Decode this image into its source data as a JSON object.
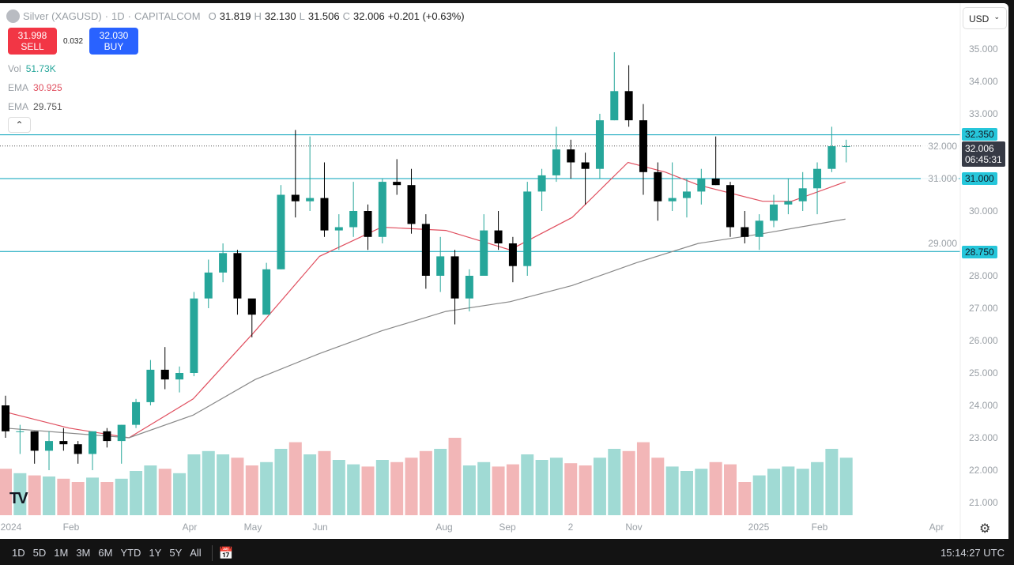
{
  "header": {
    "symbol": "Silver (XAGUSD)",
    "interval": "1D",
    "exchange": "CAPITALCOM",
    "o_label": "O",
    "open": "31.819",
    "h_label": "H",
    "high": "32.130",
    "l_label": "L",
    "low": "31.506",
    "c_label": "C",
    "close": "32.006",
    "change": "+0.201 (+0.63%)"
  },
  "trade": {
    "sell_price": "31.998",
    "sell_label": "SELL",
    "spread": "0.032",
    "buy_price": "32.030",
    "buy_label": "BUY"
  },
  "indicators": [
    {
      "label": "Vol",
      "value": "51.73K",
      "color": "#26a69a"
    },
    {
      "label": "EMA",
      "value": "30.925",
      "color": "#e04f5f"
    },
    {
      "label": "EMA",
      "value": "29.751",
      "color": "#555555"
    }
  ],
  "currency": "USD",
  "price_labels": {
    "res": "32.350",
    "last": "32.006",
    "countdown": "06:45:31",
    "mid": "31.000",
    "sup": "28.750"
  },
  "toolbar": {
    "ranges": [
      "1D",
      "5D",
      "1M",
      "3M",
      "6M",
      "YTD",
      "1Y",
      "5Y",
      "All"
    ],
    "clock": "15:14:27 UTC"
  },
  "colors": {
    "up": "#26a69a",
    "down": "#000000",
    "vol_up": "#8fd3cc",
    "vol_down": "#f0a9aa",
    "ema_fast": "#e04f5f",
    "ema_slow": "#888888",
    "hline": "#00a0b8"
  },
  "chart_data": {
    "type": "candlestick",
    "note_period": "weekly aggregation of daily candles",
    "ylim": [
      20.5,
      35.5
    ],
    "yticks": [
      "35.000",
      "34.000",
      "33.000",
      "32.000",
      "31.000",
      "30.000",
      "29.000",
      "28.000",
      "27.000",
      "26.000",
      "25.000",
      "24.000",
      "23.000",
      "22.000",
      "21.000"
    ],
    "xticks": [
      "2024",
      "Feb",
      "Apr",
      "May",
      "Jun",
      "Aug",
      "Sep",
      "2",
      "Nov",
      "2025",
      "Feb",
      "Apr"
    ],
    "hlines": [
      32.35,
      31.0,
      28.75
    ],
    "last_price": 32.006,
    "candles": [
      [
        "2024-01-01",
        24.0,
        24.3,
        23.0,
        23.2,
        42
      ],
      [
        "2024-01-08",
        23.2,
        23.4,
        22.5,
        23.2,
        38
      ],
      [
        "2024-01-15",
        23.2,
        23.2,
        22.2,
        22.6,
        36
      ],
      [
        "2024-01-22",
        22.6,
        23.2,
        22.0,
        22.9,
        35
      ],
      [
        "2024-01-29",
        22.9,
        23.3,
        22.6,
        22.8,
        33
      ],
      [
        "2024-02-05",
        22.8,
        22.9,
        22.2,
        22.5,
        30
      ],
      [
        "2024-02-12",
        22.5,
        23.2,
        22.0,
        23.2,
        34
      ],
      [
        "2024-02-19",
        23.2,
        23.3,
        22.7,
        22.9,
        30
      ],
      [
        "2024-02-26",
        22.9,
        23.4,
        22.2,
        23.4,
        33
      ],
      [
        "2024-03-04",
        23.4,
        24.2,
        23.3,
        24.1,
        40
      ],
      [
        "2024-03-11",
        24.1,
        25.4,
        24.0,
        25.1,
        45
      ],
      [
        "2024-03-18",
        25.1,
        25.8,
        24.5,
        24.8,
        42
      ],
      [
        "2024-03-25",
        24.8,
        25.2,
        24.4,
        25.0,
        38
      ],
      [
        "2024-04-01",
        25.0,
        27.5,
        24.9,
        27.3,
        55
      ],
      [
        "2024-04-08",
        27.3,
        28.5,
        27.0,
        28.1,
        58
      ],
      [
        "2024-04-15",
        28.1,
        29.0,
        27.8,
        28.7,
        55
      ],
      [
        "2024-04-22",
        28.7,
        28.8,
        26.8,
        27.3,
        52
      ],
      [
        "2024-04-29",
        27.3,
        27.2,
        26.1,
        26.8,
        45
      ],
      [
        "2024-05-06",
        26.8,
        28.4,
        26.8,
        28.2,
        48
      ],
      [
        "2024-05-13",
        28.2,
        30.8,
        28.2,
        30.5,
        60
      ],
      [
        "2024-05-20",
        30.5,
        32.5,
        29.8,
        30.3,
        66
      ],
      [
        "2024-05-27",
        30.3,
        32.3,
        30.0,
        30.4,
        55
      ],
      [
        "2024-06-03",
        30.4,
        31.5,
        29.2,
        29.4,
        58
      ],
      [
        "2024-06-10",
        29.4,
        29.9,
        28.8,
        29.5,
        50
      ],
      [
        "2024-06-17",
        29.5,
        30.9,
        29.2,
        30.0,
        46
      ],
      [
        "2024-06-24",
        30.0,
        30.2,
        28.8,
        29.2,
        44
      ],
      [
        "2024-07-01",
        29.2,
        31.0,
        29.0,
        30.9,
        50
      ],
      [
        "2024-07-08",
        30.9,
        31.6,
        30.5,
        30.8,
        48
      ],
      [
        "2024-07-15",
        30.8,
        31.3,
        29.3,
        29.6,
        52
      ],
      [
        "2024-07-22",
        29.6,
        29.9,
        27.6,
        28.0,
        58
      ],
      [
        "2024-07-29",
        28.0,
        29.2,
        27.5,
        28.6,
        60
      ],
      [
        "2024-08-05",
        28.6,
        28.8,
        26.5,
        27.3,
        70
      ],
      [
        "2024-08-12",
        27.3,
        28.2,
        26.9,
        28.0,
        45
      ],
      [
        "2024-08-19",
        28.0,
        29.9,
        28.0,
        29.4,
        48
      ],
      [
        "2024-08-26",
        29.4,
        30.0,
        28.8,
        29.0,
        44
      ],
      [
        "2024-09-02",
        29.0,
        29.2,
        27.8,
        28.3,
        46
      ],
      [
        "2024-09-09",
        28.3,
        30.9,
        28.0,
        30.6,
        55
      ],
      [
        "2024-09-16",
        30.6,
        31.3,
        30.0,
        31.1,
        50
      ],
      [
        "2024-09-23",
        31.1,
        32.6,
        30.9,
        31.9,
        52
      ],
      [
        "2024-09-30",
        31.9,
        32.2,
        31.0,
        31.5,
        47
      ],
      [
        "2024-10-07",
        31.5,
        31.8,
        30.2,
        31.3,
        45
      ],
      [
        "2024-10-14",
        31.3,
        33.0,
        31.0,
        32.8,
        52
      ],
      [
        "2024-10-21",
        32.8,
        34.9,
        32.8,
        33.7,
        60
      ],
      [
        "2024-10-28",
        33.7,
        34.5,
        32.6,
        32.8,
        58
      ],
      [
        "2024-11-04",
        32.8,
        33.3,
        30.5,
        31.2,
        66
      ],
      [
        "2024-11-11",
        31.2,
        31.5,
        29.7,
        30.3,
        52
      ],
      [
        "2024-11-18",
        30.3,
        31.5,
        30.0,
        30.4,
        44
      ],
      [
        "2024-11-25",
        30.4,
        31.0,
        29.8,
        30.6,
        40
      ],
      [
        "2024-12-02",
        30.6,
        31.3,
        30.2,
        31.0,
        42
      ],
      [
        "2024-12-09",
        31.0,
        32.3,
        30.8,
        30.8,
        48
      ],
      [
        "2024-12-16",
        30.8,
        30.9,
        29.2,
        29.5,
        46
      ],
      [
        "2024-12-23",
        29.5,
        30.0,
        29.0,
        29.2,
        30
      ],
      [
        "2024-12-30",
        29.2,
        29.9,
        28.8,
        29.7,
        36
      ],
      [
        "2025-01-06",
        29.7,
        30.5,
        29.5,
        30.2,
        42
      ],
      [
        "2025-01-13",
        30.2,
        31.0,
        29.9,
        30.3,
        44
      ],
      [
        "2025-01-20",
        30.3,
        31.2,
        30.0,
        30.7,
        42
      ],
      [
        "2025-01-27",
        30.7,
        31.5,
        29.9,
        31.3,
        48
      ],
      [
        "2025-02-03",
        31.3,
        32.6,
        31.2,
        32.0,
        60
      ],
      [
        "2025-02-10",
        32.0,
        32.2,
        31.5,
        32.0,
        52
      ]
    ],
    "series": [
      {
        "name": "EMA",
        "value_label": "30.925",
        "points": [
          [
            "2024-01-01",
            23.8
          ],
          [
            "2024-02-01",
            23.3
          ],
          [
            "2024-03-01",
            23.0
          ],
          [
            "2024-04-01",
            24.2
          ],
          [
            "2024-05-01",
            26.3
          ],
          [
            "2024-06-01",
            28.6
          ],
          [
            "2024-07-01",
            29.5
          ],
          [
            "2024-08-01",
            29.4
          ],
          [
            "2024-09-01",
            28.8
          ],
          [
            "2024-10-01",
            29.8
          ],
          [
            "2024-10-28",
            31.5
          ],
          [
            "2024-11-15",
            31.2
          ],
          [
            "2024-12-01",
            30.8
          ],
          [
            "2025-01-01",
            30.3
          ],
          [
            "2025-01-15",
            30.3
          ],
          [
            "2025-02-10",
            30.9
          ]
        ]
      },
      {
        "name": "EMA",
        "value_label": "29.751",
        "points": [
          [
            "2024-01-01",
            23.3
          ],
          [
            "2024-03-01",
            23.0
          ],
          [
            "2024-04-01",
            23.7
          ],
          [
            "2024-05-01",
            24.8
          ],
          [
            "2024-06-01",
            25.6
          ],
          [
            "2024-07-01",
            26.3
          ],
          [
            "2024-08-01",
            26.9
          ],
          [
            "2024-09-01",
            27.2
          ],
          [
            "2024-10-01",
            27.7
          ],
          [
            "2024-11-01",
            28.4
          ],
          [
            "2024-12-01",
            29.0
          ],
          [
            "2025-01-01",
            29.3
          ],
          [
            "2025-02-10",
            29.75
          ]
        ]
      }
    ]
  }
}
